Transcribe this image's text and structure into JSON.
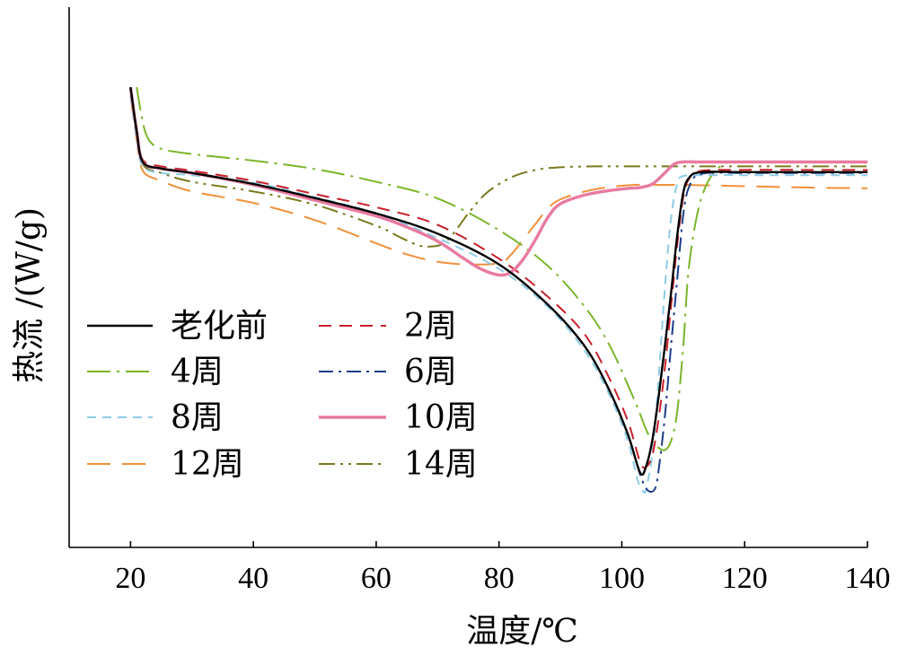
{
  "chart_data": {
    "type": "line",
    "title": "",
    "xlabel": "温度/℃",
    "ylabel": "热流 /(W/g)",
    "xlim": [
      10,
      140
    ],
    "ylim": [
      0,
      100
    ],
    "x_ticks": [
      20,
      40,
      60,
      80,
      100,
      120,
      140
    ],
    "x_tick_labels": [
      "20",
      "40",
      "60",
      "80",
      "100",
      "120",
      "140"
    ],
    "y_ticks_labeled": false,
    "grid": false,
    "legend_position": "lower-left",
    "series": [
      {
        "name": "老化前",
        "color": "#000000",
        "dash": "solid",
        "width": 2.4,
        "x": [
          20,
          21,
          22,
          25,
          30,
          40,
          50,
          60,
          70,
          80,
          88,
          94,
          98,
          101,
          103,
          104,
          105,
          106,
          107,
          108,
          109,
          110,
          111,
          113,
          120,
          130,
          140
        ],
        "y": [
          92,
          82,
          75,
          73.5,
          72.5,
          70,
          66.8,
          63.3,
          58.7,
          51.7,
          42.5,
          33,
          23,
          13,
          4.3,
          6,
          12,
          21.7,
          33,
          45,
          58,
          68,
          71.5,
          72.7,
          72.7,
          72.7,
          72.7
        ]
      },
      {
        "name": "2周",
        "color": "#c8202a",
        "dash": "14 9",
        "width": 2.0,
        "x": [
          20,
          21,
          22,
          25,
          30,
          40,
          50,
          60,
          70,
          80,
          88,
          94,
          98,
          101,
          103,
          104,
          105,
          106,
          107,
          108,
          109,
          110,
          111,
          113,
          120,
          130,
          140
        ],
        "y": [
          91,
          82,
          75.5,
          74,
          73,
          70.7,
          67.7,
          64.7,
          60.7,
          53,
          44.3,
          35.7,
          25.7,
          16,
          6.7,
          5.7,
          8.5,
          16.7,
          28,
          42,
          56,
          67,
          71.3,
          73,
          73.2,
          73.2,
          73.2
        ]
      },
      {
        "name": "4周",
        "color": "#7ab52a",
        "dash": "26 7 3 7",
        "width": 2.0,
        "x": [
          21,
          22,
          23,
          25,
          30,
          40,
          50,
          60,
          70,
          80,
          88,
          94,
          98,
          102,
          104,
          105,
          106,
          107,
          108,
          109,
          110,
          111,
          113,
          116,
          120,
          130,
          140
        ],
        "y": [
          92,
          84,
          80,
          78,
          76.8,
          75.3,
          73.4,
          70.5,
          66.7,
          59.5,
          51.3,
          42,
          33.3,
          21,
          14,
          11.5,
          10,
          9.5,
          11.5,
          18,
          33,
          52,
          67,
          74,
          75,
          75,
          75
        ]
      },
      {
        "name": "6周",
        "color": "#1c3b8a",
        "dash": "16 6 3 6",
        "width": 2.0,
        "x": [
          20,
          21,
          22,
          25,
          30,
          40,
          50,
          60,
          70,
          80,
          88,
          94,
          98,
          101,
          103,
          104,
          104.8,
          105.5,
          106,
          107,
          108,
          109,
          110,
          111,
          113,
          120,
          130,
          140
        ],
        "y": [
          92,
          82,
          75,
          73.5,
          72.5,
          70,
          66.8,
          63.3,
          58.7,
          51.7,
          42.5,
          33,
          23,
          13,
          3.8,
          0.7,
          0,
          1,
          5,
          17,
          33,
          48,
          63,
          69.5,
          72.3,
          72.5,
          72.5,
          72.5
        ]
      },
      {
        "name": "8周",
        "color": "#8ecbe6",
        "dash": "10 7",
        "width": 2.0,
        "x": [
          20,
          21,
          22,
          25,
          30,
          40,
          50,
          60,
          70,
          80,
          88,
          94,
          98,
          101,
          102.5,
          103.5,
          104,
          105,
          106,
          107,
          108,
          109,
          110,
          113,
          120,
          130,
          140
        ],
        "y": [
          90,
          80,
          74,
          72.5,
          72,
          70.3,
          67,
          63.3,
          57.7,
          50.7,
          42,
          32,
          22,
          11.5,
          3,
          0,
          1,
          9,
          26,
          46,
          62,
          70,
          71.8,
          72,
          72,
          72,
          72
        ]
      },
      {
        "name": "10周",
        "color": "#e87aa0",
        "dash": "solid",
        "width": 3.4,
        "x": [
          20,
          21,
          22,
          25,
          30,
          40,
          50,
          60,
          65,
          70,
          74,
          77,
          80,
          82,
          84,
          86,
          88,
          90,
          94,
          98,
          101,
          103,
          105,
          107,
          108.5,
          110,
          113,
          120,
          130,
          140
        ],
        "y": [
          92,
          82,
          75,
          73.5,
          72.5,
          69.8,
          66.3,
          62.7,
          60.2,
          57,
          53.3,
          50.7,
          49.3,
          50,
          53,
          57.5,
          62.5,
          65.5,
          67.5,
          68.5,
          69,
          69.2,
          70,
          72.5,
          74.5,
          75,
          75,
          75,
          75,
          75
        ]
      },
      {
        "name": "12周",
        "color": "#f0903a",
        "dash": "26 13",
        "width": 2.0,
        "x": [
          20,
          21,
          22,
          25,
          30,
          40,
          50,
          60,
          65,
          70,
          75,
          80,
          82,
          84,
          86,
          88,
          90,
          94,
          98,
          102,
          106,
          108,
          110,
          113,
          120,
          130,
          140
        ],
        "y": [
          90,
          80,
          73,
          70.7,
          68.3,
          65.7,
          61.8,
          56.5,
          54,
          52.3,
          51.7,
          52,
          54,
          57.5,
          61,
          64.5,
          66.5,
          68.3,
          69.3,
          69.8,
          69.8,
          69.8,
          69.8,
          69.7,
          69.5,
          69.2,
          69
        ]
      },
      {
        "name": "14周",
        "color": "#7a7a1e",
        "dash": "18 6 3 6 3 6",
        "width": 2.0,
        "x": [
          20,
          21,
          22,
          25,
          30,
          40,
          50,
          60,
          64,
          67,
          69,
          71,
          73,
          75,
          78,
          82,
          86,
          90,
          95,
          100,
          110,
          120,
          130,
          140
        ],
        "y": [
          92,
          82,
          74.5,
          72.5,
          70.5,
          68.3,
          65.3,
          60.5,
          57.8,
          56,
          55.8,
          56.5,
          59.5,
          63.3,
          68,
          71.5,
          73.2,
          73.8,
          74,
          74,
          74,
          74,
          74,
          74
        ]
      }
    ]
  }
}
